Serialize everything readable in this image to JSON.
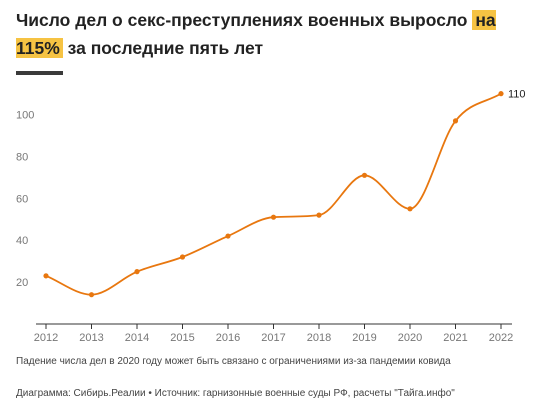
{
  "header": {
    "title_before": "Число дел о секс-преступлениях военных выросло ",
    "title_highlight": "на 115%",
    "title_after": " за последние пять лет",
    "highlight_color": "#f6c343"
  },
  "chart_data": {
    "type": "line",
    "title": "Число дел о секс-преступлениях военных выросло на 115% за последние пять лет",
    "xlabel": "",
    "ylabel": "",
    "x": [
      "2012",
      "2013",
      "2014",
      "2015",
      "2016",
      "2017",
      "2018",
      "2019",
      "2020",
      "2021",
      "2022"
    ],
    "series": [
      {
        "values": [
          23,
          14,
          25,
          32,
          42,
          51,
          52,
          71,
          55,
          97,
          110
        ],
        "color": "#e8770f"
      }
    ],
    "ylim": [
      0,
      120
    ],
    "yticks": [
      20,
      40,
      60,
      80,
      100
    ],
    "grid": false,
    "end_label": "110"
  },
  "footer": {
    "note": "Падение числа дел в 2020 году может быть связано с ограничениями из-за пандемии ковида",
    "source": "Диаграмма: Сибирь.Реалии • Источник: гарнизонные военные суды РФ, расчеты \"Тайга.инфо\""
  }
}
